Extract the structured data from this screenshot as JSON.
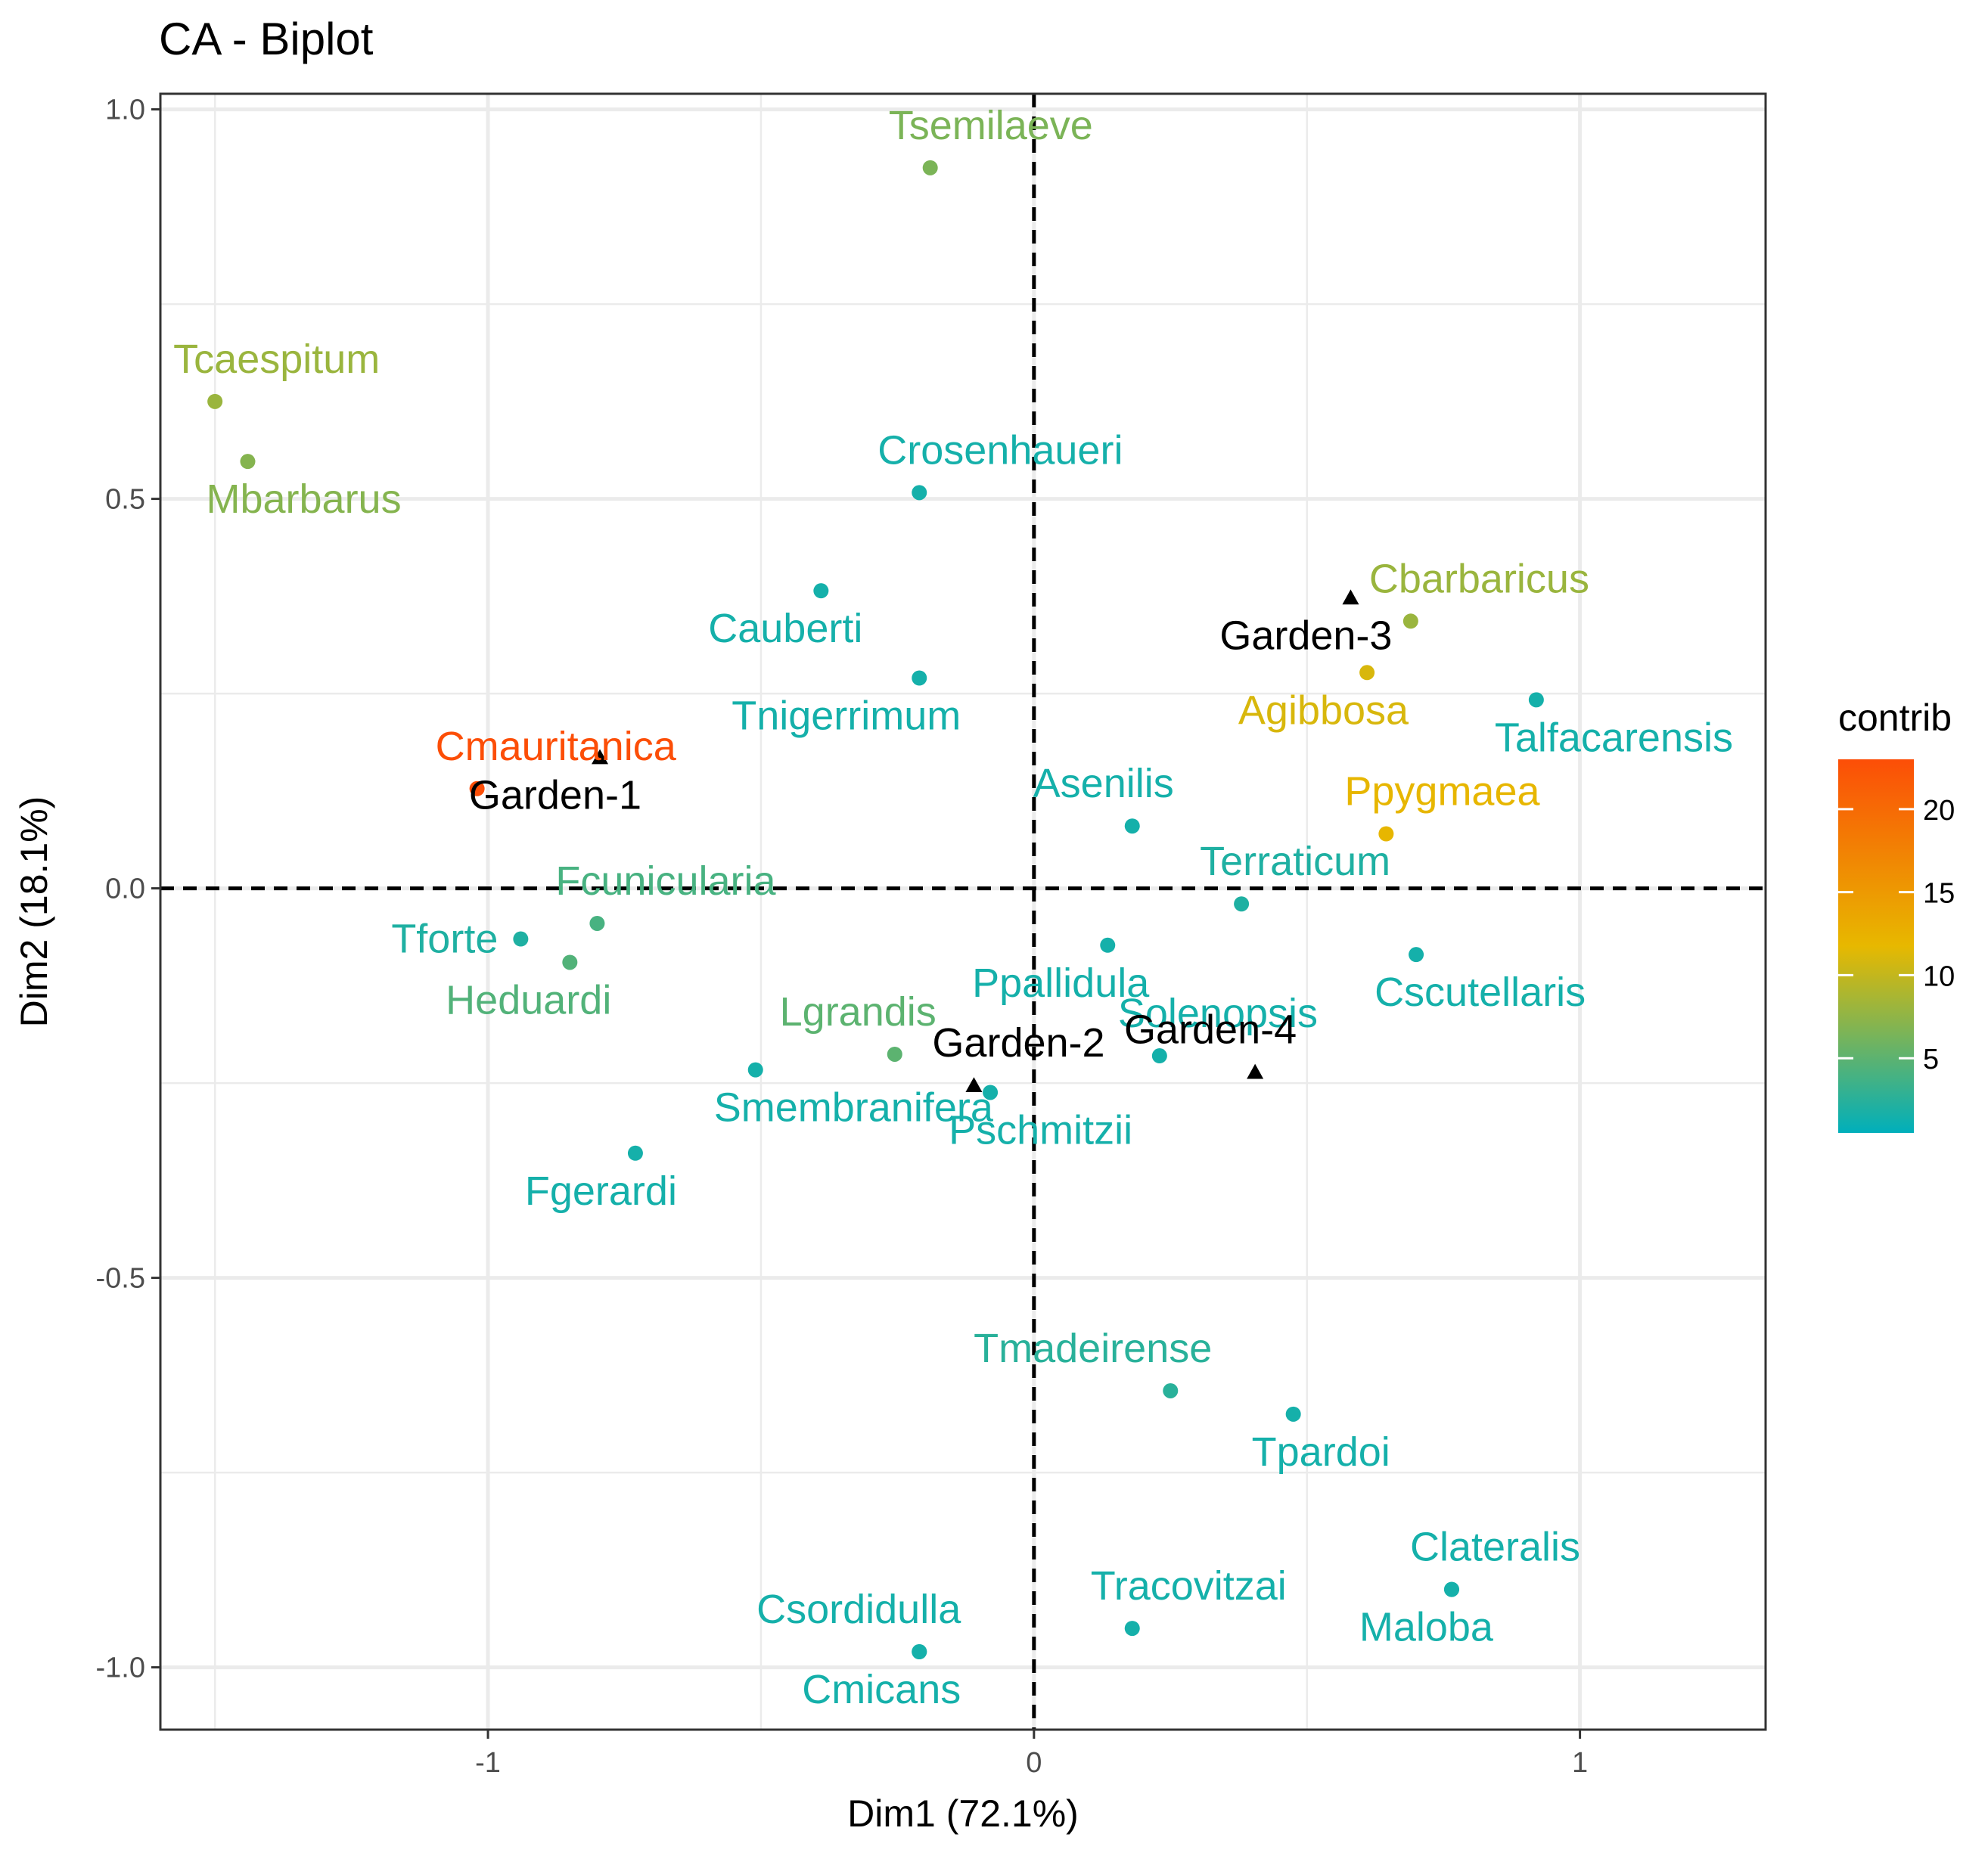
{
  "chart_data": {
    "type": "scatter",
    "title": "CA - Biplot",
    "xlabel": "Dim1 (72.1%)",
    "ylabel": "Dim2 (18.1%)",
    "xlim": [
      -1.6,
      1.34
    ],
    "ylim": [
      -1.08,
      1.02
    ],
    "x_ticks": [
      -1,
      0,
      1
    ],
    "x_tick_labels": [
      "-1",
      "0",
      "1"
    ],
    "y_ticks": [
      -1.0,
      -0.5,
      0.0,
      0.5,
      1.0
    ],
    "y_tick_labels": [
      "-1.0",
      "-0.5",
      "0.0",
      "0.5",
      "1.0"
    ],
    "grid": true,
    "reference_lines": {
      "x": 0,
      "y": 0,
      "style": "dashed"
    },
    "legend": {
      "title": "contrib",
      "position": "right",
      "range": [
        0.5,
        23
      ],
      "ticks": [
        5,
        10,
        15,
        20
      ],
      "tick_labels": [
        "5",
        "10",
        "15",
        "20"
      ],
      "gradient": [
        "#00AFBB",
        "#E7B800",
        "#FC4E07"
      ]
    },
    "series": [
      {
        "name": "columns",
        "marker": "point",
        "points": [
          {
            "label": "Tsemilaeve",
            "x": -0.19,
            "y": 0.925,
            "contrib": 6.5,
            "label_pos": "above-right"
          },
          {
            "label": "Tcaespitum",
            "x": -1.5,
            "y": 0.625,
            "contrib": 8.0,
            "label_pos": "above-right"
          },
          {
            "label": "Mbarbarus",
            "x": -1.44,
            "y": 0.548,
            "contrib": 7.0,
            "label_pos": "below-right"
          },
          {
            "label": "Crosenhaueri",
            "x": -0.21,
            "y": 0.508,
            "contrib": 1.5,
            "label_pos": "above-right"
          },
          {
            "label": "Cauberti",
            "x": -0.39,
            "y": 0.382,
            "contrib": 1.5,
            "label_pos": "below-left"
          },
          {
            "label": "Tnigerrimum",
            "x": -0.21,
            "y": 0.27,
            "contrib": 1.5,
            "label_pos": "below-left"
          },
          {
            "label": "Cbarbaricus",
            "x": 0.69,
            "y": 0.343,
            "contrib": 8.0,
            "label_pos": "above-right"
          },
          {
            "label": "Agibbosa",
            "x": 0.61,
            "y": 0.277,
            "contrib": 11.0,
            "label_pos": "below-left"
          },
          {
            "label": "Talfacarensis",
            "x": 0.92,
            "y": 0.242,
            "contrib": 1.5,
            "label_pos": "below-right"
          },
          {
            "label": "Cmauritanica",
            "x": -1.02,
            "y": 0.128,
            "contrib": 23.0,
            "label_pos": "above-right"
          },
          {
            "label": "Asenilis",
            "x": 0.18,
            "y": 0.08,
            "contrib": 1.5,
            "label_pos": "above-left"
          },
          {
            "label": "Ppygmaea",
            "x": 0.645,
            "y": 0.07,
            "contrib": 12.0,
            "label_pos": "above-right"
          },
          {
            "label": "Terraticum",
            "x": 0.38,
            "y": -0.02,
            "contrib": 2.0,
            "label_pos": "above-right"
          },
          {
            "label": "Fcunicularia",
            "x": -0.8,
            "y": -0.045,
            "contrib": 4.0,
            "label_pos": "above-right"
          },
          {
            "label": "Tforte",
            "x": -0.94,
            "y": -0.065,
            "contrib": 2.0,
            "label_pos": "left"
          },
          {
            "label": "Ppallidula",
            "x": 0.135,
            "y": -0.073,
            "contrib": 1.5,
            "label_pos": "below-left"
          },
          {
            "label": "Heduardi",
            "x": -0.85,
            "y": -0.095,
            "contrib": 4.5,
            "label_pos": "below-left"
          },
          {
            "label": "Cscutellaris",
            "x": 0.7,
            "y": -0.085,
            "contrib": 1.5,
            "label_pos": "below-right"
          },
          {
            "label": "Lgrandis",
            "x": -0.255,
            "y": -0.213,
            "contrib": 5.0,
            "label_pos": "above-left"
          },
          {
            "label": "Solenopsis",
            "x": 0.23,
            "y": -0.215,
            "contrib": 1.5,
            "label_pos": "above-right"
          },
          {
            "label": "Smembranifera",
            "x": -0.51,
            "y": -0.233,
            "contrib": 1.5,
            "label_pos": "below-right"
          },
          {
            "label": "Pschmitzii",
            "x": -0.08,
            "y": -0.262,
            "contrib": 1.5,
            "label_pos": "below-right"
          },
          {
            "label": "Fgerardi",
            "x": -0.73,
            "y": -0.34,
            "contrib": 1.5,
            "label_pos": "below-left"
          },
          {
            "label": "Tmadeirense",
            "x": 0.25,
            "y": -0.645,
            "contrib": 2.5,
            "label_pos": "above-left"
          },
          {
            "label": "Tpardoi",
            "x": 0.475,
            "y": -0.675,
            "contrib": 1.5,
            "label_pos": "below-right"
          },
          {
            "label": "Clateralis",
            "x": 0.765,
            "y": -0.9,
            "contrib": 1.5,
            "label_pos": "above-right"
          },
          {
            "label": "Maloba",
            "x": 0.765,
            "y": -0.9,
            "contrib": 1.5,
            "label_pos": "below-left"
          },
          {
            "label": "Tracovitzai",
            "x": 0.18,
            "y": -0.95,
            "contrib": 1.5,
            "label_pos": "above-right"
          },
          {
            "label": "Csordidulla",
            "x": -0.21,
            "y": -0.98,
            "contrib": 1.5,
            "label_pos": "above-left"
          },
          {
            "label": "Cmicans",
            "x": -0.21,
            "y": -0.98,
            "contrib": 1.5,
            "label_pos": "below-left"
          }
        ]
      },
      {
        "name": "rows",
        "marker": "triangle",
        "color": "#000000",
        "points": [
          {
            "label": "Garden-1",
            "x": -0.795,
            "y": 0.168,
            "label_pos": "below-left"
          },
          {
            "label": "Garden-2",
            "x": -0.11,
            "y": -0.253,
            "label_pos": "above-right"
          },
          {
            "label": "Garden-3",
            "x": 0.58,
            "y": 0.373,
            "label_pos": "below-left"
          },
          {
            "label": "Garden-4",
            "x": 0.405,
            "y": -0.236,
            "label_pos": "above-left"
          }
        ]
      }
    ]
  }
}
